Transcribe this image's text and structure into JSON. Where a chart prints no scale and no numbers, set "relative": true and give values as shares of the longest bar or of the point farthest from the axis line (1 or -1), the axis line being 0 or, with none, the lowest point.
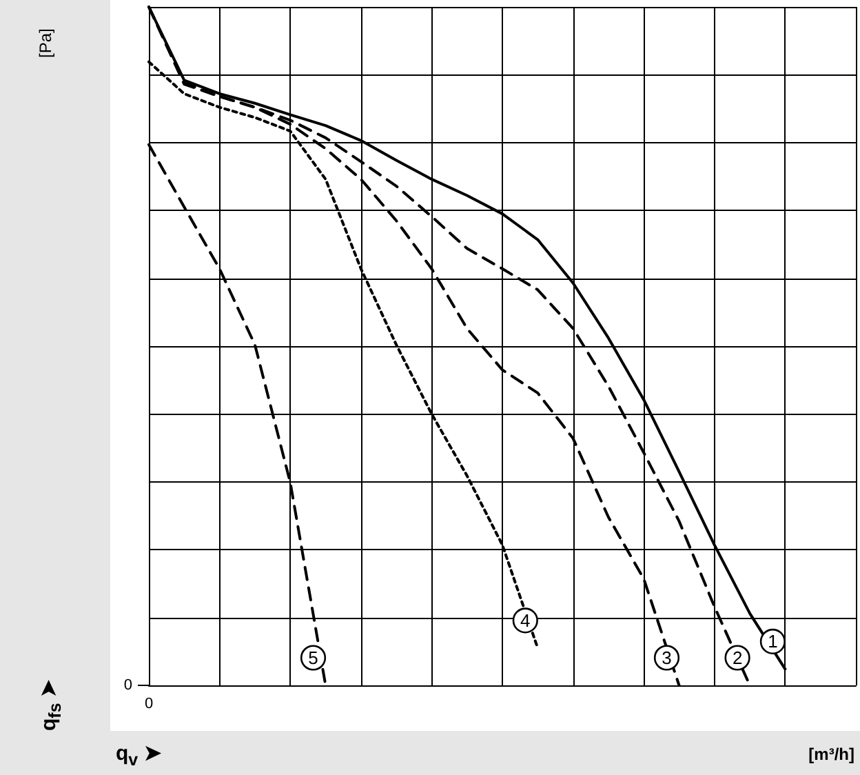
{
  "chart_data": {
    "type": "line",
    "relative": true,
    "xlabel": "[m³/h]",
    "grid": true,
    "legend": false,
    "marker": "none",
    "categories": [
      null,
      null,
      null,
      null,
      null,
      null,
      null,
      null,
      null,
      null,
      null,
      null,
      null,
      null,
      null,
      null,
      null,
      null,
      null,
      null,
      null
    ],
    "annotations": [
      "[Pa]",
      "q$_{fs}$ ➤",
      "q$_{v}$ ➤",
      "0",
      "0"
    ],
    "series": [
      {
        "name": "1",
        "color": "#000000",
        "line_style": "solid",
        "values": [
          1,
          0.892,
          0.872,
          0.858,
          0.841,
          0.825,
          0.803,
          0.774,
          0.746,
          0.722,
          0.695,
          0.657,
          0.593,
          0.512,
          0.421,
          0.315,
          0.207,
          0.106,
          0.024,
          null,
          null
        ]
      },
      {
        "name": "2",
        "color": "#000000",
        "line_style": "dashed",
        "values": [
          1,
          0.888,
          0.868,
          0.852,
          0.833,
          0.807,
          0.772,
          0.736,
          0.691,
          0.644,
          0.614,
          0.583,
          0.526,
          0.441,
          0.343,
          0.242,
          0.116,
          0,
          null,
          null,
          null
        ]
      },
      {
        "name": "3",
        "color": "#000000",
        "line_style": "dashed",
        "values": [
          1,
          0.886,
          0.868,
          0.852,
          0.827,
          0.791,
          0.746,
          0.685,
          0.614,
          0.526,
          0.465,
          0.431,
          0.364,
          0.248,
          0.157,
          0,
          null,
          null,
          null,
          null,
          null
        ]
      },
      {
        "name": "4",
        "color": "#000000",
        "line_style": "dotted",
        "values": [
          0.919,
          0.872,
          0.852,
          0.837,
          0.817,
          0.746,
          0.614,
          0.502,
          0.4,
          0.309,
          0.207,
          0.055,
          null,
          null,
          null,
          null,
          null,
          null,
          null,
          null,
          null
        ]
      },
      {
        "name": "5",
        "color": "#000000",
        "line_style": "dashed",
        "values": [
          0.797,
          0.705,
          0.614,
          0.502,
          0.299,
          0,
          null,
          null,
          null,
          null,
          null,
          null,
          null,
          null,
          null,
          null,
          null,
          null,
          null,
          null,
          null
        ]
      }
    ]
  }
}
